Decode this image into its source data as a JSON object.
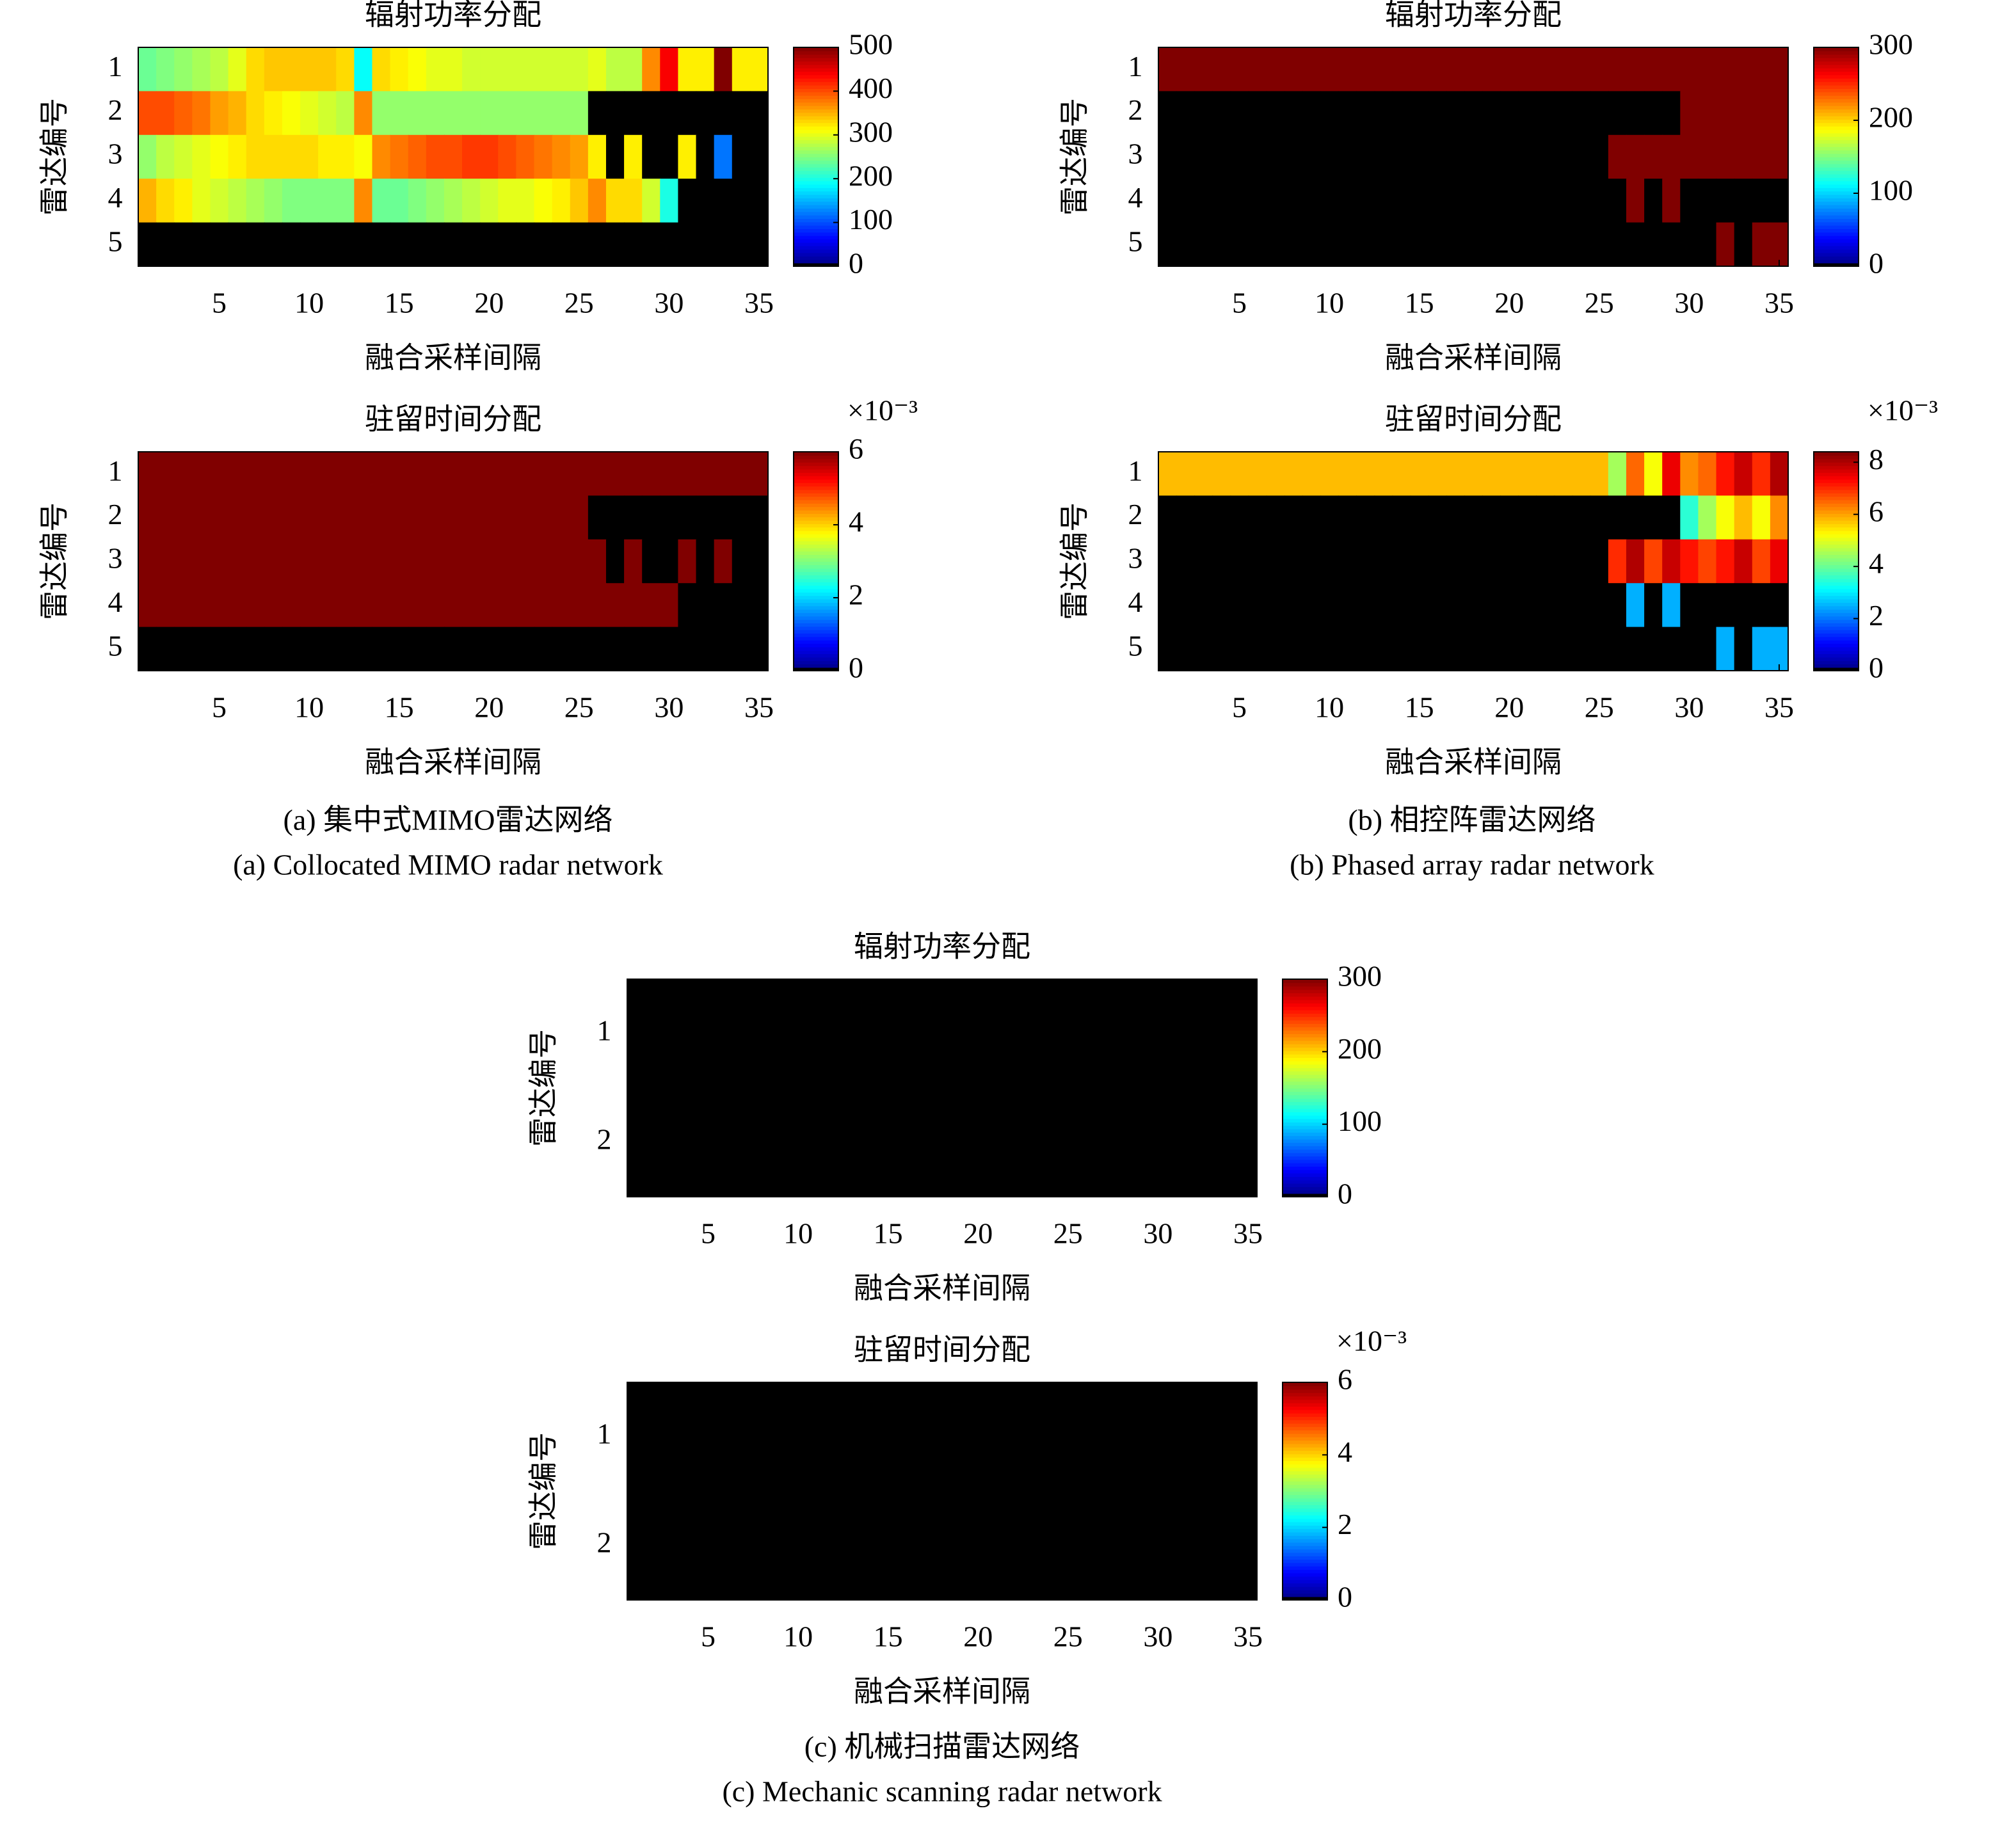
{
  "chart_data": [
    {
      "type": "heatmap",
      "title": "辐射功率分配",
      "xlabel": "融合采样间隔",
      "ylabel": "雷达编号",
      "colormap": "jet",
      "x": [
        1,
        2,
        3,
        4,
        5,
        6,
        7,
        8,
        9,
        10,
        11,
        12,
        13,
        14,
        15,
        16,
        17,
        18,
        19,
        20,
        21,
        22,
        23,
        24,
        25,
        26,
        27,
        28,
        29,
        30,
        31,
        32,
        33,
        34,
        35
      ],
      "rows": [
        "1",
        "2",
        "3",
        "4",
        "5"
      ],
      "xlim": [
        0.5,
        35.5
      ],
      "xticks": [
        5,
        10,
        15,
        20,
        25,
        30,
        35
      ],
      "clim": [
        0,
        500
      ],
      "cticks": [
        0,
        100,
        200,
        300,
        400,
        500
      ],
      "values": [
        [
          240,
          250,
          260,
          270,
          280,
          300,
          330,
          340,
          340,
          340,
          340,
          330,
          190,
          330,
          320,
          310,
          300,
          300,
          290,
          290,
          290,
          290,
          290,
          290,
          290,
          300,
          280,
          280,
          370,
          440,
          320,
          320,
          500,
          320,
          320
        ],
        [
          400,
          400,
          390,
          380,
          360,
          350,
          330,
          320,
          310,
          300,
          290,
          280,
          370,
          260,
          260,
          260,
          260,
          260,
          260,
          260,
          260,
          260,
          260,
          260,
          260,
          0,
          0,
          0,
          0,
          0,
          0,
          0,
          0,
          0,
          0
        ],
        [
          260,
          280,
          290,
          300,
          310,
          320,
          330,
          330,
          330,
          330,
          320,
          320,
          310,
          370,
          380,
          390,
          400,
          400,
          410,
          410,
          400,
          390,
          380,
          370,
          360,
          320,
          0,
          320,
          0,
          0,
          320,
          0,
          120,
          0,
          0
        ],
        [
          350,
          330,
          320,
          300,
          290,
          280,
          270,
          260,
          250,
          250,
          250,
          250,
          370,
          240,
          240,
          250,
          260,
          270,
          280,
          290,
          300,
          300,
          310,
          320,
          340,
          370,
          330,
          330,
          290,
          200,
          0,
          0,
          0,
          0,
          0
        ],
        [
          0,
          0,
          0,
          0,
          0,
          0,
          0,
          0,
          0,
          0,
          0,
          0,
          0,
          0,
          0,
          0,
          0,
          0,
          0,
          0,
          0,
          0,
          0,
          0,
          0,
          0,
          0,
          0,
          0,
          0,
          0,
          0,
          0,
          0,
          0
        ]
      ]
    },
    {
      "type": "heatmap",
      "title": "驻留时间分配",
      "xlabel": "融合采样间隔",
      "ylabel": "雷达编号",
      "colormap": "jet",
      "x": [
        1,
        2,
        3,
        4,
        5,
        6,
        7,
        8,
        9,
        10,
        11,
        12,
        13,
        14,
        15,
        16,
        17,
        18,
        19,
        20,
        21,
        22,
        23,
        24,
        25,
        26,
        27,
        28,
        29,
        30,
        31,
        32,
        33,
        34,
        35
      ],
      "rows": [
        "1",
        "2",
        "3",
        "4",
        "5"
      ],
      "xlim": [
        0.5,
        35.5
      ],
      "xticks": [
        5,
        10,
        15,
        20,
        25,
        30,
        35
      ],
      "clim": [
        0,
        0.006
      ],
      "cticks": [
        {
          "value": 0,
          "label": "0"
        },
        {
          "value": 0.002,
          "label": "2"
        },
        {
          "value": 0.004,
          "label": "4"
        },
        {
          "value": 0.006,
          "label": "6"
        }
      ],
      "colorbar_label": "×10⁻³",
      "values": [
        [
          0.006,
          0.006,
          0.006,
          0.006,
          0.006,
          0.006,
          0.006,
          0.006,
          0.006,
          0.006,
          0.006,
          0.006,
          0.006,
          0.006,
          0.006,
          0.006,
          0.006,
          0.006,
          0.006,
          0.006,
          0.006,
          0.006,
          0.006,
          0.006,
          0.006,
          0.006,
          0.006,
          0.006,
          0.006,
          0.006,
          0.006,
          0.006,
          0.006,
          0.006,
          0.006
        ],
        [
          0.006,
          0.006,
          0.006,
          0.006,
          0.006,
          0.006,
          0.006,
          0.006,
          0.006,
          0.006,
          0.006,
          0.006,
          0.006,
          0.006,
          0.006,
          0.006,
          0.006,
          0.006,
          0.006,
          0.006,
          0.006,
          0.006,
          0.006,
          0.006,
          0.006,
          0,
          0,
          0,
          0,
          0,
          0,
          0,
          0,
          0,
          0
        ],
        [
          0.006,
          0.006,
          0.006,
          0.006,
          0.006,
          0.006,
          0.006,
          0.006,
          0.006,
          0.006,
          0.006,
          0.006,
          0.006,
          0.006,
          0.006,
          0.006,
          0.006,
          0.006,
          0.006,
          0.006,
          0.006,
          0.006,
          0.006,
          0.006,
          0.006,
          0.006,
          0,
          0.006,
          0,
          0,
          0.006,
          0,
          0.006,
          0,
          0
        ],
        [
          0.006,
          0.006,
          0.006,
          0.006,
          0.006,
          0.006,
          0.006,
          0.006,
          0.006,
          0.006,
          0.006,
          0.006,
          0.006,
          0.006,
          0.006,
          0.006,
          0.006,
          0.006,
          0.006,
          0.006,
          0.006,
          0.006,
          0.006,
          0.006,
          0.006,
          0.006,
          0.006,
          0.006,
          0.006,
          0.006,
          0,
          0,
          0,
          0,
          0
        ],
        [
          0,
          0,
          0,
          0,
          0,
          0,
          0,
          0,
          0,
          0,
          0,
          0,
          0,
          0,
          0,
          0,
          0,
          0,
          0,
          0,
          0,
          0,
          0,
          0,
          0,
          0,
          0,
          0,
          0,
          0,
          0,
          0,
          0,
          0,
          0
        ]
      ]
    },
    {
      "type": "heatmap",
      "title": "辐射功率分配",
      "xlabel": "融合采样间隔",
      "ylabel": "雷达编号",
      "colormap": "jet",
      "x": [
        1,
        2,
        3,
        4,
        5,
        6,
        7,
        8,
        9,
        10,
        11,
        12,
        13,
        14,
        15,
        16,
        17,
        18,
        19,
        20,
        21,
        22,
        23,
        24,
        25,
        26,
        27,
        28,
        29,
        30,
        31,
        32,
        33,
        34,
        35
      ],
      "rows": [
        "1",
        "2",
        "3",
        "4",
        "5"
      ],
      "xlim": [
        0.5,
        35.5
      ],
      "xticks": [
        5,
        10,
        15,
        20,
        25,
        30,
        35
      ],
      "clim": [
        0,
        300
      ],
      "cticks": [
        0,
        100,
        200,
        300
      ],
      "values": [
        [
          300,
          300,
          300,
          300,
          300,
          300,
          300,
          300,
          300,
          300,
          300,
          300,
          300,
          300,
          300,
          300,
          300,
          300,
          300,
          300,
          300,
          300,
          300,
          300,
          300,
          300,
          300,
          300,
          300,
          300,
          300,
          300,
          300,
          300,
          300
        ],
        [
          0,
          0,
          0,
          0,
          0,
          0,
          0,
          0,
          0,
          0,
          0,
          0,
          0,
          0,
          0,
          0,
          0,
          0,
          0,
          0,
          0,
          0,
          0,
          0,
          0,
          0,
          0,
          0,
          0,
          300,
          300,
          300,
          300,
          300,
          300
        ],
        [
          0,
          0,
          0,
          0,
          0,
          0,
          0,
          0,
          0,
          0,
          0,
          0,
          0,
          0,
          0,
          0,
          0,
          0,
          0,
          0,
          0,
          0,
          0,
          0,
          0,
          300,
          300,
          300,
          300,
          300,
          300,
          300,
          300,
          300,
          300
        ],
        [
          0,
          0,
          0,
          0,
          0,
          0,
          0,
          0,
          0,
          0,
          0,
          0,
          0,
          0,
          0,
          0,
          0,
          0,
          0,
          0,
          0,
          0,
          0,
          0,
          0,
          0,
          300,
          0,
          300,
          0,
          0,
          0,
          0,
          0,
          0
        ],
        [
          0,
          0,
          0,
          0,
          0,
          0,
          0,
          0,
          0,
          0,
          0,
          0,
          0,
          0,
          0,
          0,
          0,
          0,
          0,
          0,
          0,
          0,
          0,
          0,
          0,
          0,
          0,
          0,
          0,
          0,
          0,
          300,
          0,
          300,
          300
        ]
      ]
    },
    {
      "type": "heatmap",
      "title": "驻留时间分配",
      "xlabel": "融合采样间隔",
      "ylabel": "雷达编号",
      "colormap": "jet",
      "x": [
        1,
        2,
        3,
        4,
        5,
        6,
        7,
        8,
        9,
        10,
        11,
        12,
        13,
        14,
        15,
        16,
        17,
        18,
        19,
        20,
        21,
        22,
        23,
        24,
        25,
        26,
        27,
        28,
        29,
        30,
        31,
        32,
        33,
        34,
        35
      ],
      "rows": [
        "1",
        "2",
        "3",
        "4",
        "5"
      ],
      "xlim": [
        0.5,
        35.5
      ],
      "xticks": [
        5,
        10,
        15,
        20,
        25,
        30,
        35
      ],
      "clim": [
        0,
        0.0084
      ],
      "cticks": [
        {
          "value": 0,
          "label": "0"
        },
        {
          "value": 0.002,
          "label": "2"
        },
        {
          "value": 0.004,
          "label": "4"
        },
        {
          "value": 0.006,
          "label": "6"
        },
        {
          "value": 0.008,
          "label": "8"
        }
      ],
      "colorbar_label": "×10⁻³",
      "values": [
        [
          0.0058,
          0.0058,
          0.0058,
          0.0058,
          0.0058,
          0.0058,
          0.0058,
          0.0058,
          0.0058,
          0.0058,
          0.0058,
          0.0058,
          0.0058,
          0.0058,
          0.0058,
          0.0058,
          0.0058,
          0.0058,
          0.0058,
          0.0058,
          0.0058,
          0.0058,
          0.0058,
          0.0058,
          0.0058,
          0.0045,
          0.0065,
          0.0052,
          0.0075,
          0.0062,
          0.0065,
          0.0072,
          0.0078,
          0.007,
          0.008
        ],
        [
          0,
          0,
          0,
          0,
          0,
          0,
          0,
          0,
          0,
          0,
          0,
          0,
          0,
          0,
          0,
          0,
          0,
          0,
          0,
          0,
          0,
          0,
          0,
          0,
          0,
          0,
          0,
          0,
          0,
          0.0035,
          0.0045,
          0.0052,
          0.0058,
          0.0052,
          0.0062
        ],
        [
          0,
          0,
          0,
          0,
          0,
          0,
          0,
          0,
          0,
          0,
          0,
          0,
          0,
          0,
          0,
          0,
          0,
          0,
          0,
          0,
          0,
          0,
          0,
          0,
          0,
          0.007,
          0.008,
          0.0068,
          0.0078,
          0.0072,
          0.0068,
          0.0072,
          0.0078,
          0.0068,
          0.0075
        ],
        [
          0,
          0,
          0,
          0,
          0,
          0,
          0,
          0,
          0,
          0,
          0,
          0,
          0,
          0,
          0,
          0,
          0,
          0,
          0,
          0,
          0,
          0,
          0,
          0,
          0,
          0,
          0.0025,
          0,
          0.0025,
          0,
          0,
          0,
          0,
          0,
          0
        ],
        [
          0,
          0,
          0,
          0,
          0,
          0,
          0,
          0,
          0,
          0,
          0,
          0,
          0,
          0,
          0,
          0,
          0,
          0,
          0,
          0,
          0,
          0,
          0,
          0,
          0,
          0,
          0,
          0,
          0,
          0,
          0,
          0.0025,
          0,
          0.0025,
          0.0025
        ]
      ]
    },
    {
      "type": "heatmap",
      "title": "辐射功率分配",
      "xlabel": "融合采样间隔",
      "ylabel": "雷达编号",
      "colormap": "jet",
      "x": [
        1,
        2,
        3,
        4,
        5,
        6,
        7,
        8,
        9,
        10,
        11,
        12,
        13,
        14,
        15,
        16,
        17,
        18,
        19,
        20,
        21,
        22,
        23,
        24,
        25,
        26,
        27,
        28,
        29,
        30,
        31,
        32,
        33,
        34,
        35
      ],
      "rows": [
        "1",
        "2"
      ],
      "xlim": [
        0.5,
        35.5
      ],
      "xticks": [
        5,
        10,
        15,
        20,
        25,
        30,
        35
      ],
      "clim": [
        0,
        300
      ],
      "cticks": [
        0,
        100,
        200,
        300
      ],
      "values": [
        [
          0,
          0,
          0,
          0,
          0,
          0,
          0,
          0,
          0,
          0,
          0,
          0,
          0,
          0,
          0,
          0,
          0,
          0,
          0,
          0,
          0,
          0,
          0,
          0,
          0,
          0,
          0,
          0,
          0,
          0,
          0,
          0,
          0,
          0,
          0
        ],
        [
          0,
          0,
          0,
          0,
          0,
          0,
          0,
          0,
          0,
          0,
          0,
          0,
          0,
          0,
          0,
          0,
          0,
          0,
          0,
          0,
          0,
          0,
          0,
          0,
          0,
          0,
          0,
          0,
          0,
          0,
          0,
          0,
          0,
          0,
          0
        ]
      ]
    },
    {
      "type": "heatmap",
      "title": "驻留时间分配",
      "xlabel": "融合采样间隔",
      "ylabel": "雷达编号",
      "colormap": "jet",
      "x": [
        1,
        2,
        3,
        4,
        5,
        6,
        7,
        8,
        9,
        10,
        11,
        12,
        13,
        14,
        15,
        16,
        17,
        18,
        19,
        20,
        21,
        22,
        23,
        24,
        25,
        26,
        27,
        28,
        29,
        30,
        31,
        32,
        33,
        34,
        35
      ],
      "rows": [
        "1",
        "2"
      ],
      "xlim": [
        0.5,
        35.5
      ],
      "xticks": [
        5,
        10,
        15,
        20,
        25,
        30,
        35
      ],
      "clim": [
        0,
        0.006
      ],
      "cticks": [
        {
          "value": 0,
          "label": "0"
        },
        {
          "value": 0.002,
          "label": "2"
        },
        {
          "value": 0.004,
          "label": "4"
        },
        {
          "value": 0.006,
          "label": "6"
        }
      ],
      "colorbar_label": "×10⁻³",
      "values": [
        [
          0,
          0,
          0,
          0,
          0,
          0,
          0,
          0,
          0,
          0,
          0,
          0,
          0,
          0,
          0,
          0,
          0,
          0,
          0,
          0,
          0,
          0,
          0,
          0,
          0,
          0,
          0,
          0,
          0,
          0,
          0,
          0,
          0,
          0,
          0
        ],
        [
          0,
          0,
          0,
          0,
          0,
          0,
          0,
          0,
          0,
          0,
          0,
          0,
          0,
          0,
          0,
          0,
          0,
          0,
          0,
          0,
          0,
          0,
          0,
          0,
          0,
          0,
          0,
          0,
          0,
          0,
          0,
          0,
          0,
          0,
          0
        ]
      ]
    }
  ],
  "captions": [
    {
      "zh": "(a) 集中式MIMO雷达网络",
      "en": "(a) Collocated MIMO radar network"
    },
    {
      "zh": "(b) 相控阵雷达网络",
      "en": "(b) Phased array radar network"
    },
    {
      "zh": "(c) 机械扫描雷达网络",
      "en": "(c) Mechanic scanning radar network"
    }
  ]
}
